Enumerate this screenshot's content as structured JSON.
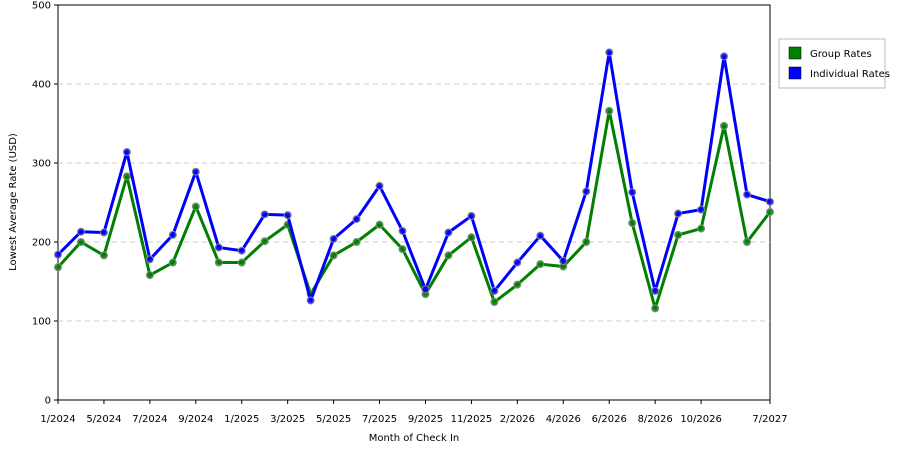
{
  "chart_data": {
    "type": "line",
    "x_label": "Month of Check In",
    "y_label": "Lowest Average Rate (USD)",
    "categories": [
      "1/2024",
      null,
      "5/2024",
      null,
      "7/2024",
      null,
      "9/2024",
      null,
      "1/2025",
      null,
      "3/2025",
      null,
      "5/2025",
      null,
      "7/2025",
      null,
      "9/2025",
      null,
      "11/2025",
      null,
      "2/2026",
      null,
      "4/2026",
      null,
      "6/2026",
      null,
      "8/2026",
      null,
      "10/2026",
      null,
      null,
      "7/2027"
    ],
    "series": [
      {
        "name": "Group Rates",
        "color": "#008000",
        "values": [
          168,
          200,
          183,
          283,
          158,
          174,
          245,
          174,
          174,
          201,
          222,
          134,
          183,
          200,
          222,
          191,
          134,
          183,
          206,
          124,
          146,
          172,
          169,
          200,
          366,
          224,
          116,
          209,
          217,
          347,
          200,
          238
        ]
      },
      {
        "name": "Individual Rates",
        "color": "#0000ff",
        "values": [
          184,
          213,
          212,
          314,
          178,
          209,
          289,
          193,
          189,
          235,
          234,
          126,
          204,
          229,
          271,
          214,
          140,
          212,
          233,
          138,
          174,
          208,
          176,
          264,
          440,
          263,
          138,
          236,
          241,
          435,
          260,
          251
        ]
      }
    ],
    "ylim": [
      0,
      500
    ],
    "yticks": [
      0,
      100,
      200,
      300,
      400,
      500
    ],
    "grid": true
  }
}
